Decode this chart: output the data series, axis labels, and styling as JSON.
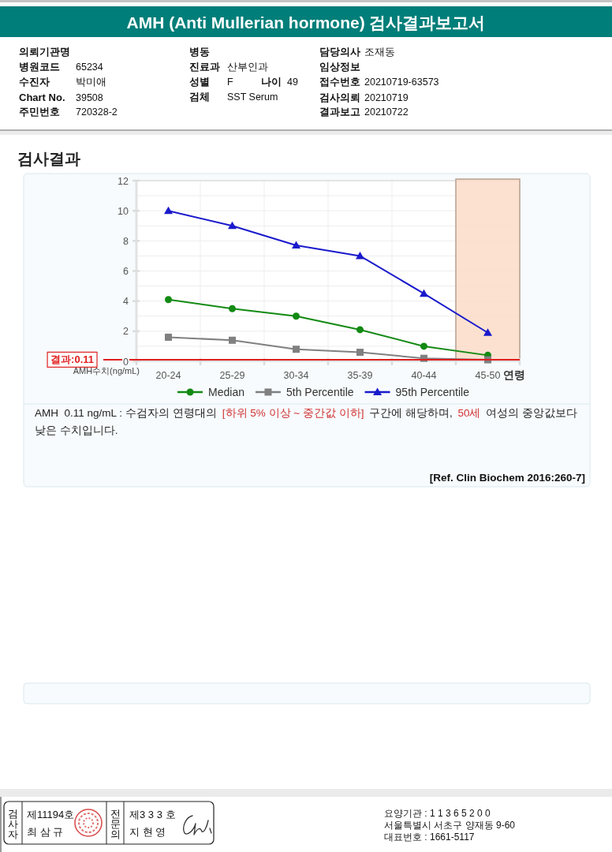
{
  "chart_data": {
    "type": "line",
    "title": "AMH (Anti Mullerian hormone) 검사결과보고서",
    "subtitle": "검사결과",
    "xlabel": "연령",
    "ylabel": "AMH수치(ng/mL)",
    "categories": [
      "20-24",
      "25-29",
      "30-34",
      "35-39",
      "40-44",
      "45-50"
    ],
    "series": [
      {
        "name": "Median",
        "color": "#138a13",
        "marker": "circle",
        "values": [
          4.1,
          3.5,
          3.0,
          2.1,
          1.0,
          0.4
        ]
      },
      {
        "name": "5th Percentile",
        "color": "#808080",
        "marker": "square",
        "values": [
          1.6,
          1.4,
          0.8,
          0.6,
          0.2,
          0.1
        ]
      },
      {
        "name": "95th Percentile",
        "color": "#1a1acc",
        "marker": "triangle",
        "values": [
          10.0,
          9.0,
          7.7,
          7.0,
          4.5,
          1.9
        ]
      }
    ],
    "ylim": [
      0,
      12
    ],
    "yticks": [
      0,
      {
        "value": 1,
        "label": null
      },
      2,
      {
        "value": 3,
        "label": null
      },
      4,
      {
        "value": 5,
        "label": null
      },
      6,
      {
        "value": 7,
        "label": null
      },
      8,
      {
        "value": 9,
        "label": null
      },
      10,
      {
        "value": 11,
        "label": null
      },
      12
    ],
    "grid": true,
    "legend": "bottom",
    "ref_lines": [
      {
        "axis": "y",
        "value": 0.11,
        "label": "결과:0.11",
        "color": "#e02020"
      }
    ],
    "bands": [
      {
        "axis": "x",
        "from": "45-50",
        "to": "45-50",
        "color": "#fbdcc8"
      }
    ],
    "annotations": [
      "의뢰기관명",
      "병원코드",
      "65234",
      "수진자",
      "박미애",
      "Chart No.",
      "39508",
      "주민번호",
      "720328-2",
      "병동",
      "진료과",
      "산부인과",
      "성별",
      "F",
      "나이",
      "49",
      "검체",
      "SST Serum",
      "담당의사",
      "조재동",
      "임상정보",
      "접수번호",
      "20210719-63573",
      "검사의뢰",
      "20210719",
      "결과보고",
      "20210722",
      "AMH  0.11 ng/mL : 수검자의 연령대의",
      "[하위 5% 이상 ~ 중간값 이하]",
      "구간에 해당하며,",
      "50세",
      "여성의 중앙값보다",
      "낮은 수치입니다.",
      "[Ref. Clin Biochem 2016:260-7]",
      "검사자",
      "제11194호",
      "최 삼 규",
      "전문의",
      "제3 3 3 호",
      "지 현 영",
      "요양기관 : 1 1 3 6 5 2 0 0",
      "서울특별시 서초구 양재동 9-60",
      "대표번호 : 1661-5117"
    ]
  }
}
